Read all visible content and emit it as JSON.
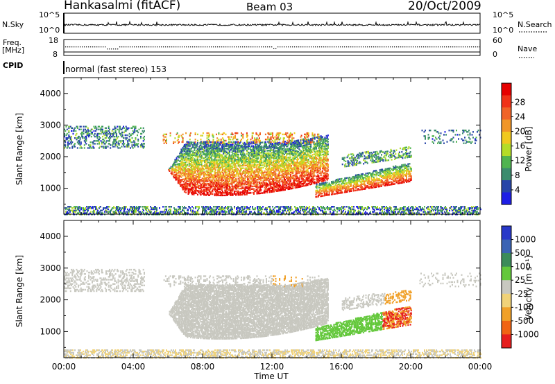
{
  "header": {
    "station": "Hankasalmi (fitACF)",
    "beam": "Beam 03",
    "date": "20/Oct/2009"
  },
  "strip_labels": {
    "nsky": "N.Sky",
    "nsky_top": "10^5",
    "nsky_bottom": "10^0",
    "nsearch": "N.Search",
    "nsearch_top": "10^5",
    "nsearch_bottom": "10^0",
    "freq": "Freq.",
    "freq_unit": "[MHz]",
    "freq_top": "18",
    "freq_bottom": "8",
    "nave": "Nave",
    "nave_top": "60",
    "nave_bottom": "0",
    "cpid": "CPID",
    "cpid_text": "normal (fast stereo) 153"
  },
  "chart_data": [
    {
      "type": "heatmap",
      "name": "power",
      "ylabel": "Slant Range [km]",
      "xlabel": "Time UT",
      "x_ticks": [
        "00:00",
        "04:00",
        "08:00",
        "12:00",
        "16:00",
        "20:00",
        "00:00"
      ],
      "y_ticks": [
        1000,
        2000,
        3000,
        4000
      ],
      "ylim": [
        180,
        4500
      ],
      "xlim_hours": [
        0,
        24
      ],
      "colorbar_label": "Power [dB]",
      "colorbar_ticks": [
        "4",
        "8",
        "12",
        "16",
        "20",
        "24",
        "28"
      ],
      "colorbar_colors": [
        "#1e1ee6",
        "#2846a8",
        "#3c8c6e",
        "#50b450",
        "#b4dc28",
        "#f0c81e",
        "#f09628",
        "#f06428",
        "#f03218",
        "#e60000"
      ]
    },
    {
      "type": "heatmap",
      "name": "velocity",
      "ylabel": "Slant Range [km]",
      "xlabel": "Time UT",
      "x_ticks": [
        "00:00",
        "04:00",
        "08:00",
        "12:00",
        "16:00",
        "20:00",
        "00:00"
      ],
      "y_ticks": [
        1000,
        2000,
        3000,
        4000
      ],
      "ylim": [
        180,
        4500
      ],
      "xlim_hours": [
        0,
        24
      ],
      "colorbar_label": "Velocity [m s⁻¹]",
      "colorbar_ticks": [
        "1000",
        "500",
        "100",
        "25",
        "-25",
        "-100",
        "-500",
        "-1000"
      ],
      "colorbar_colors": [
        "#2838c8",
        "#3c64b4",
        "#3c8c5a",
        "#64c83c",
        "#c8c8c0",
        "#f0d278",
        "#f0a028",
        "#f06414",
        "#e61e1e"
      ]
    }
  ],
  "xaxis_title": "Time UT"
}
